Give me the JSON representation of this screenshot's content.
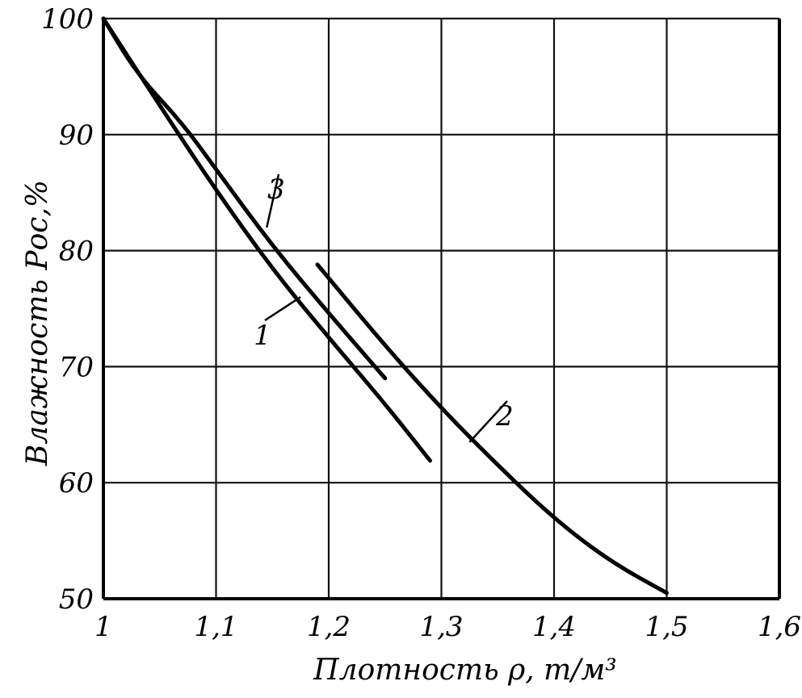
{
  "chart_data": {
    "type": "line",
    "xlabel": "Плотность ρ, т/м³",
    "ylabel": "Влажность Pос,%",
    "xlim": [
      1.0,
      1.6
    ],
    "ylim": [
      50,
      100
    ],
    "grid": true,
    "x_ticks": [
      "1",
      "1,1",
      "1,2",
      "1,3",
      "1,4",
      "1,5",
      "1,6"
    ],
    "y_ticks": [
      "50",
      "60",
      "70",
      "80",
      "90",
      "100"
    ],
    "series": [
      {
        "name": "1",
        "x": [
          1.0,
          1.05,
          1.1,
          1.15,
          1.2,
          1.25,
          1.29
        ],
        "y": [
          100,
          92.5,
          85.2,
          78.4,
          72.5,
          66.8,
          61.9
        ]
      },
      {
        "name": "2",
        "x": [
          1.19,
          1.25,
          1.3,
          1.35,
          1.4,
          1.45,
          1.5
        ],
        "y": [
          78.8,
          71.8,
          66.4,
          61.5,
          56.9,
          53.2,
          50.5
        ]
      },
      {
        "name": "3",
        "x": [
          1.0,
          1.03,
          1.07,
          1.1,
          1.15,
          1.2,
          1.25
        ],
        "y": [
          100,
          95.2,
          91.0,
          87.0,
          80.4,
          74.6,
          69.0
        ]
      }
    ]
  }
}
